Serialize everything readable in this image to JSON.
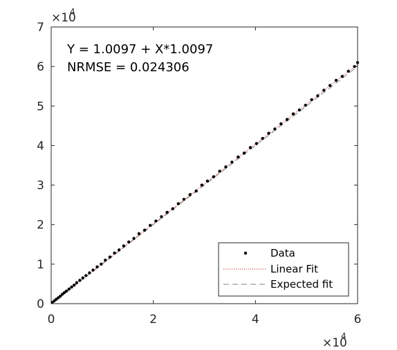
{
  "chart_data": {
    "type": "scatter",
    "x_multiplier_base": "×10",
    "x_multiplier_exp": "4",
    "y_multiplier_base": "×10",
    "y_multiplier_exp": "4",
    "xlim": [
      0,
      6
    ],
    "ylim": [
      0,
      7
    ],
    "x_ticks": [
      "0",
      "2",
      "4",
      "6"
    ],
    "y_ticks": [
      "0",
      "1",
      "2",
      "3",
      "4",
      "5",
      "6",
      "7"
    ],
    "annotations": [
      "Y = 1.0097 + X*1.0097",
      "NRMSE = 0.024306"
    ],
    "legend": {
      "position": "bottom-right",
      "entries": [
        {
          "label": "Data",
          "style": "dot",
          "color": "#000000"
        },
        {
          "label": "Linear Fit",
          "style": "dotted",
          "color": "#c00000"
        },
        {
          "label": "Expected fit",
          "style": "dashed",
          "color": "#808080"
        }
      ]
    },
    "series": [
      {
        "name": "Data",
        "x": [
          0.02,
          0.06,
          0.1,
          0.14,
          0.18,
          0.22,
          0.26,
          0.3,
          0.35,
          0.4,
          0.45,
          0.5,
          0.56,
          0.62,
          0.68,
          0.75,
          0.82,
          0.9,
          0.98,
          1.06,
          1.15,
          1.24,
          1.33,
          1.42,
          1.52,
          1.62,
          1.72,
          1.83,
          1.94,
          2.05,
          2.16,
          2.27,
          2.38,
          2.49,
          2.6,
          2.72,
          2.84,
          2.95,
          3.06,
          3.18,
          3.3,
          3.42,
          3.54,
          3.66,
          3.78,
          3.9,
          4.02,
          4.14,
          4.26,
          4.38,
          4.5,
          4.62,
          4.74,
          4.86,
          4.98,
          5.1,
          5.22,
          5.34,
          5.46,
          5.58,
          5.7,
          5.82,
          5.94,
          6.0
        ],
        "y": [
          0.03,
          0.07,
          0.11,
          0.15,
          0.19,
          0.24,
          0.28,
          0.32,
          0.37,
          0.42,
          0.47,
          0.53,
          0.59,
          0.65,
          0.71,
          0.78,
          0.85,
          0.93,
          1.0,
          1.1,
          1.18,
          1.28,
          1.36,
          1.46,
          1.56,
          1.65,
          1.77,
          1.86,
          1.98,
          2.09,
          2.2,
          2.31,
          2.4,
          2.53,
          2.64,
          2.76,
          2.85,
          3.0,
          3.1,
          3.21,
          3.35,
          3.46,
          3.58,
          3.71,
          3.81,
          3.95,
          4.05,
          4.18,
          4.31,
          4.42,
          4.55,
          4.66,
          4.8,
          4.9,
          5.02,
          5.16,
          5.26,
          5.4,
          5.52,
          5.65,
          5.75,
          5.88,
          6.0,
          6.1
        ]
      },
      {
        "name": "Linear Fit",
        "x": [
          0,
          6
        ],
        "y": [
          0.0001,
          6.058
        ]
      },
      {
        "name": "Expected fit",
        "x": [
          0,
          6
        ],
        "y": [
          0,
          6.0
        ]
      }
    ]
  }
}
